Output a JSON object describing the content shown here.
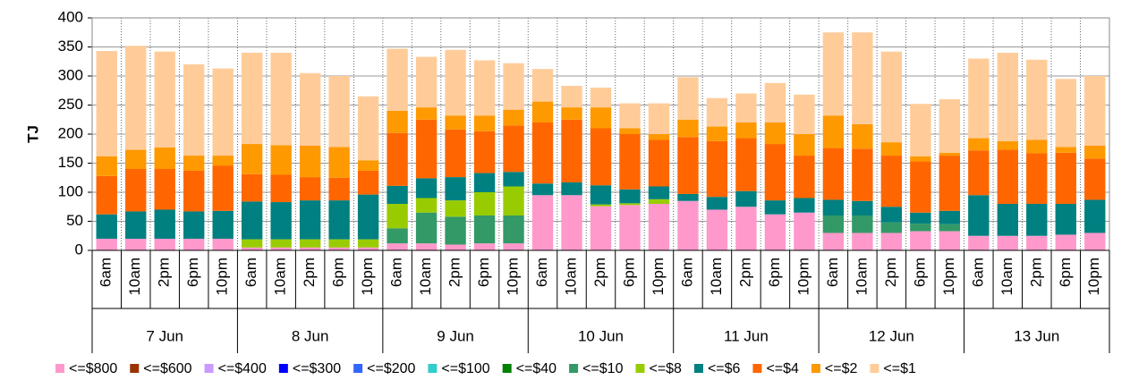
{
  "chart_data": {
    "type": "stacked_bar",
    "y_label": "TJ",
    "categories": [
      "6am",
      "10am",
      "2pm",
      "6pm",
      "10pm",
      "6am",
      "10am",
      "2pm",
      "6pm",
      "10pm",
      "6am",
      "10am",
      "2pm",
      "6pm",
      "10pm",
      "6am",
      "10am",
      "2pm",
      "6pm",
      "10pm",
      "6am",
      "10am",
      "2pm",
      "6pm",
      "10pm",
      "6am",
      "10am",
      "2pm",
      "6pm",
      "10pm",
      "6am",
      "10am",
      "2pm",
      "6pm",
      "10pm"
    ],
    "groups": [
      "7 Jun",
      "8 Jun",
      "9 Jun",
      "10 Jun",
      "11 Jun",
      "12 Jun",
      "13 Jun"
    ],
    "ylim": [
      0,
      400
    ],
    "yticks": [
      0,
      50,
      100,
      150,
      200,
      250,
      300,
      350,
      400
    ],
    "grid": true,
    "series": [
      {
        "name": "<=$800",
        "color": "#ff99cc",
        "values": [
          20,
          20,
          20,
          20,
          20,
          5,
          5,
          5,
          5,
          5,
          12,
          12,
          10,
          12,
          12,
          95,
          95,
          76,
          78,
          80,
          85,
          70,
          75,
          62,
          65,
          30,
          30,
          30,
          33,
          33,
          25,
          25,
          25,
          27,
          30
        ]
      },
      {
        "name": "<=$600",
        "color": "#993300",
        "values": [
          0,
          0,
          0,
          0,
          0,
          0,
          0,
          0,
          0,
          0,
          0,
          0,
          0,
          0,
          0,
          0,
          0,
          0,
          0,
          0,
          0,
          0,
          0,
          0,
          0,
          0,
          0,
          0,
          0,
          0,
          0,
          0,
          0,
          0,
          0
        ]
      },
      {
        "name": "<=$400",
        "color": "#cc99ff",
        "values": [
          0,
          0,
          0,
          0,
          0,
          0,
          0,
          0,
          0,
          0,
          0,
          0,
          0,
          0,
          0,
          0,
          0,
          0,
          0,
          0,
          0,
          0,
          0,
          0,
          0,
          0,
          0,
          0,
          0,
          0,
          0,
          0,
          0,
          0,
          0
        ]
      },
      {
        "name": "<=$300",
        "color": "#0000ff",
        "values": [
          0,
          0,
          0,
          0,
          0,
          0,
          0,
          0,
          0,
          0,
          0,
          0,
          0,
          0,
          0,
          0,
          0,
          0,
          0,
          0,
          0,
          0,
          0,
          0,
          0,
          0,
          0,
          0,
          0,
          0,
          0,
          0,
          0,
          0,
          0
        ]
      },
      {
        "name": "<=$200",
        "color": "#3366ff",
        "values": [
          0,
          0,
          0,
          0,
          0,
          0,
          0,
          0,
          0,
          0,
          0,
          0,
          0,
          0,
          0,
          0,
          0,
          0,
          0,
          0,
          0,
          0,
          0,
          0,
          0,
          0,
          0,
          0,
          0,
          0,
          0,
          0,
          0,
          0,
          0
        ]
      },
      {
        "name": "<=$100",
        "color": "#33cccc",
        "values": [
          0,
          0,
          0,
          0,
          0,
          0,
          0,
          0,
          0,
          0,
          0,
          0,
          0,
          0,
          0,
          0,
          0,
          0,
          0,
          0,
          0,
          0,
          0,
          0,
          0,
          0,
          0,
          0,
          0,
          0,
          0,
          0,
          0,
          0,
          0
        ]
      },
      {
        "name": "<=$40",
        "color": "#008000",
        "values": [
          0,
          0,
          0,
          0,
          0,
          0,
          0,
          0,
          0,
          0,
          0,
          0,
          0,
          0,
          0,
          0,
          0,
          0,
          0,
          0,
          0,
          0,
          0,
          0,
          0,
          0,
          0,
          0,
          0,
          0,
          0,
          0,
          0,
          0,
          0
        ]
      },
      {
        "name": "<=$10",
        "color": "#339966",
        "values": [
          0,
          0,
          0,
          0,
          0,
          0,
          0,
          0,
          0,
          0,
          26,
          53,
          48,
          48,
          48,
          0,
          0,
          0,
          0,
          0,
          0,
          0,
          0,
          0,
          0,
          30,
          30,
          18,
          13,
          12,
          0,
          0,
          0,
          0,
          0
        ]
      },
      {
        "name": "<=$8",
        "color": "#99cc00",
        "values": [
          0,
          0,
          0,
          0,
          0,
          14,
          14,
          14,
          14,
          14,
          42,
          25,
          28,
          40,
          50,
          0,
          0,
          3,
          3,
          8,
          0,
          0,
          0,
          0,
          0,
          0,
          0,
          0,
          0,
          0,
          0,
          0,
          0,
          0,
          0
        ]
      },
      {
        "name": "<=$6",
        "color": "#008080",
        "values": [
          42,
          47,
          50,
          47,
          48,
          65,
          64,
          67,
          67,
          77,
          31,
          34,
          40,
          33,
          25,
          20,
          22,
          33,
          24,
          22,
          12,
          22,
          27,
          24,
          25,
          27,
          25,
          27,
          19,
          23,
          70,
          55,
          55,
          53,
          57
        ]
      },
      {
        "name": "<=$4",
        "color": "#ff6600",
        "values": [
          66,
          73,
          70,
          70,
          78,
          47,
          47,
          40,
          39,
          41,
          91,
          101,
          82,
          72,
          80,
          105,
          108,
          98,
          95,
          80,
          98,
          96,
          91,
          97,
          73,
          89,
          90,
          88,
          88,
          95,
          77,
          93,
          87,
          88,
          71
        ]
      },
      {
        "name": "<=$2",
        "color": "#ff9900",
        "values": [
          34,
          33,
          37,
          26,
          17,
          52,
          51,
          54,
          53,
          18,
          38,
          21,
          24,
          27,
          27,
          36,
          21,
          36,
          10,
          10,
          30,
          25,
          27,
          37,
          37,
          56,
          42,
          23,
          9,
          5,
          21,
          15,
          23,
          10,
          22
        ]
      },
      {
        "name": "<=$1",
        "color": "#ffcc99",
        "values": [
          181,
          179,
          165,
          157,
          150,
          157,
          159,
          125,
          122,
          110,
          107,
          87,
          113,
          95,
          80,
          56,
          37,
          34,
          43,
          53,
          73,
          49,
          50,
          68,
          68,
          143,
          158,
          156,
          90,
          92,
          137,
          152,
          138,
          117,
          120
        ]
      }
    ]
  }
}
